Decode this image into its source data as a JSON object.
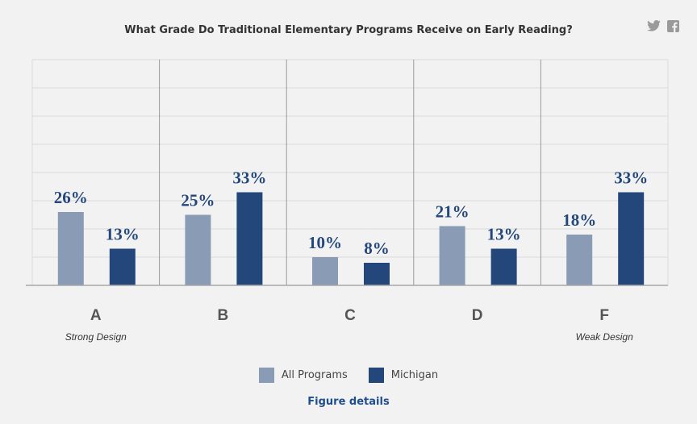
{
  "header": {
    "title": "What Grade Do Traditional Elementary Programs Receive on Early Reading?",
    "share_icons": [
      "twitter-icon",
      "facebook-icon"
    ]
  },
  "chart_data": {
    "type": "bar",
    "categories": [
      "A",
      "B",
      "C",
      "D",
      "F"
    ],
    "category_notes": [
      "Strong Design",
      "",
      "",
      "",
      "Weak Design"
    ],
    "series": [
      {
        "name": "All Programs",
        "values": [
          26,
          25,
          10,
          21,
          18
        ],
        "labels": [
          "26%",
          "25%",
          "10%",
          "21%",
          "18%"
        ],
        "color": "#8a9bb6"
      },
      {
        "name": "Michigan",
        "values": [
          13,
          33,
          8,
          13,
          33
        ],
        "labels": [
          "13%",
          "33%",
          "8%",
          "13%",
          "33%"
        ],
        "color": "#23477b"
      }
    ],
    "ylim": [
      0,
      80
    ],
    "y_gridline_step": 10,
    "grid": true,
    "legend_position": "bottom"
  },
  "footer": {
    "link_label": "Figure details"
  }
}
